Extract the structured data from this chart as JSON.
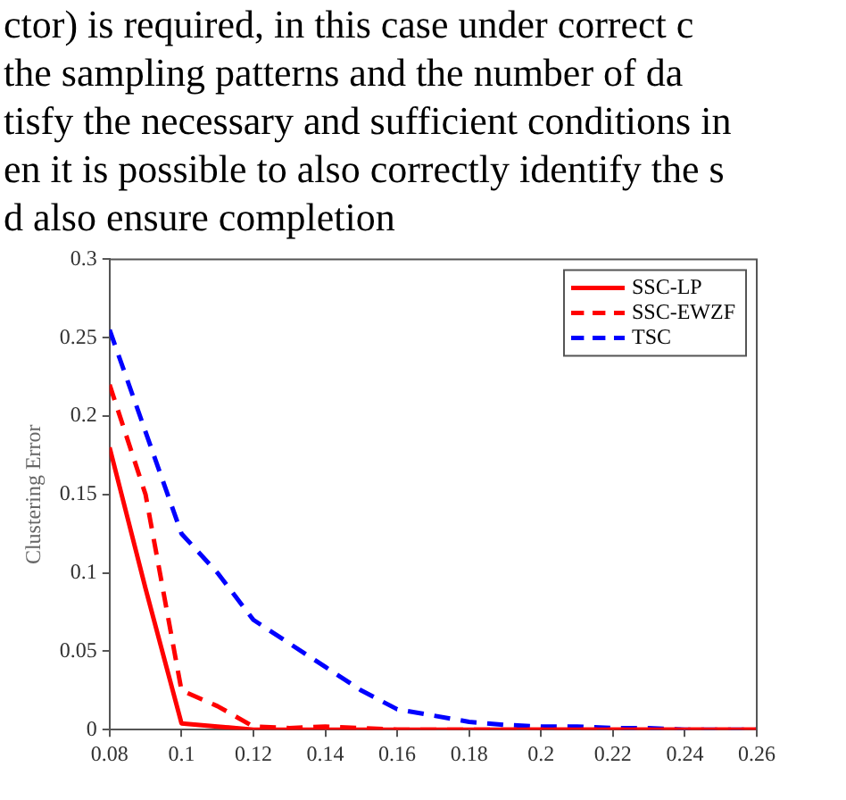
{
  "chart_data": {
    "type": "line",
    "ylabel": "Clustering Error",
    "annotations": [
      "ctor) is required, in this case under correct c",
      "the sampling patterns and the number of da",
      "tisfy the necessary and sufficient conditions in",
      "en it is possible to also correctly identify the s",
      "d also ensure completion"
    ],
    "x": [
      0.08,
      0.09,
      0.1,
      0.11,
      0.12,
      0.13,
      0.14,
      0.15,
      0.16,
      0.17,
      0.18,
      0.19,
      0.2,
      0.21,
      0.22,
      0.23,
      0.24,
      0.25,
      0.26
    ],
    "series": [
      {
        "name": "SSC-LP",
        "color": "#ff0000",
        "line_style": "solid",
        "values": [
          0.18,
          0.09,
          0.004,
          0.002,
          0,
          0,
          0,
          0,
          0,
          0,
          0,
          0,
          0,
          0,
          0,
          0,
          0,
          0,
          0
        ]
      },
      {
        "name": "SSC-EWZF",
        "color": "#ff0000",
        "line_style": "dashed",
        "values": [
          0.22,
          0.15,
          0.025,
          0.015,
          0.002,
          0.001,
          0.002,
          0.001,
          0,
          0,
          0,
          0,
          0,
          0,
          0,
          0,
          0,
          0,
          0
        ]
      },
      {
        "name": "TSC",
        "color": "#0000ff",
        "line_style": "dashed",
        "values": [
          0.255,
          0.19,
          0.125,
          0.1,
          0.07,
          0.055,
          0.04,
          0.025,
          0.013,
          0.009,
          0.005,
          0.003,
          0.002,
          0.002,
          0.001,
          0.001,
          0,
          0,
          0
        ]
      }
    ],
    "xlim": [
      0.08,
      0.26
    ],
    "xticks": [
      0.08,
      0.1,
      0.12,
      0.14,
      0.16,
      0.18,
      0.2,
      0.22,
      0.24,
      0.26
    ],
    "ylim": [
      0,
      0.3
    ],
    "yticks": [
      0,
      0.05,
      0.1,
      0.15,
      0.2,
      0.25,
      0.3
    ],
    "grid": false,
    "legend": "top right",
    "marker": "none"
  }
}
